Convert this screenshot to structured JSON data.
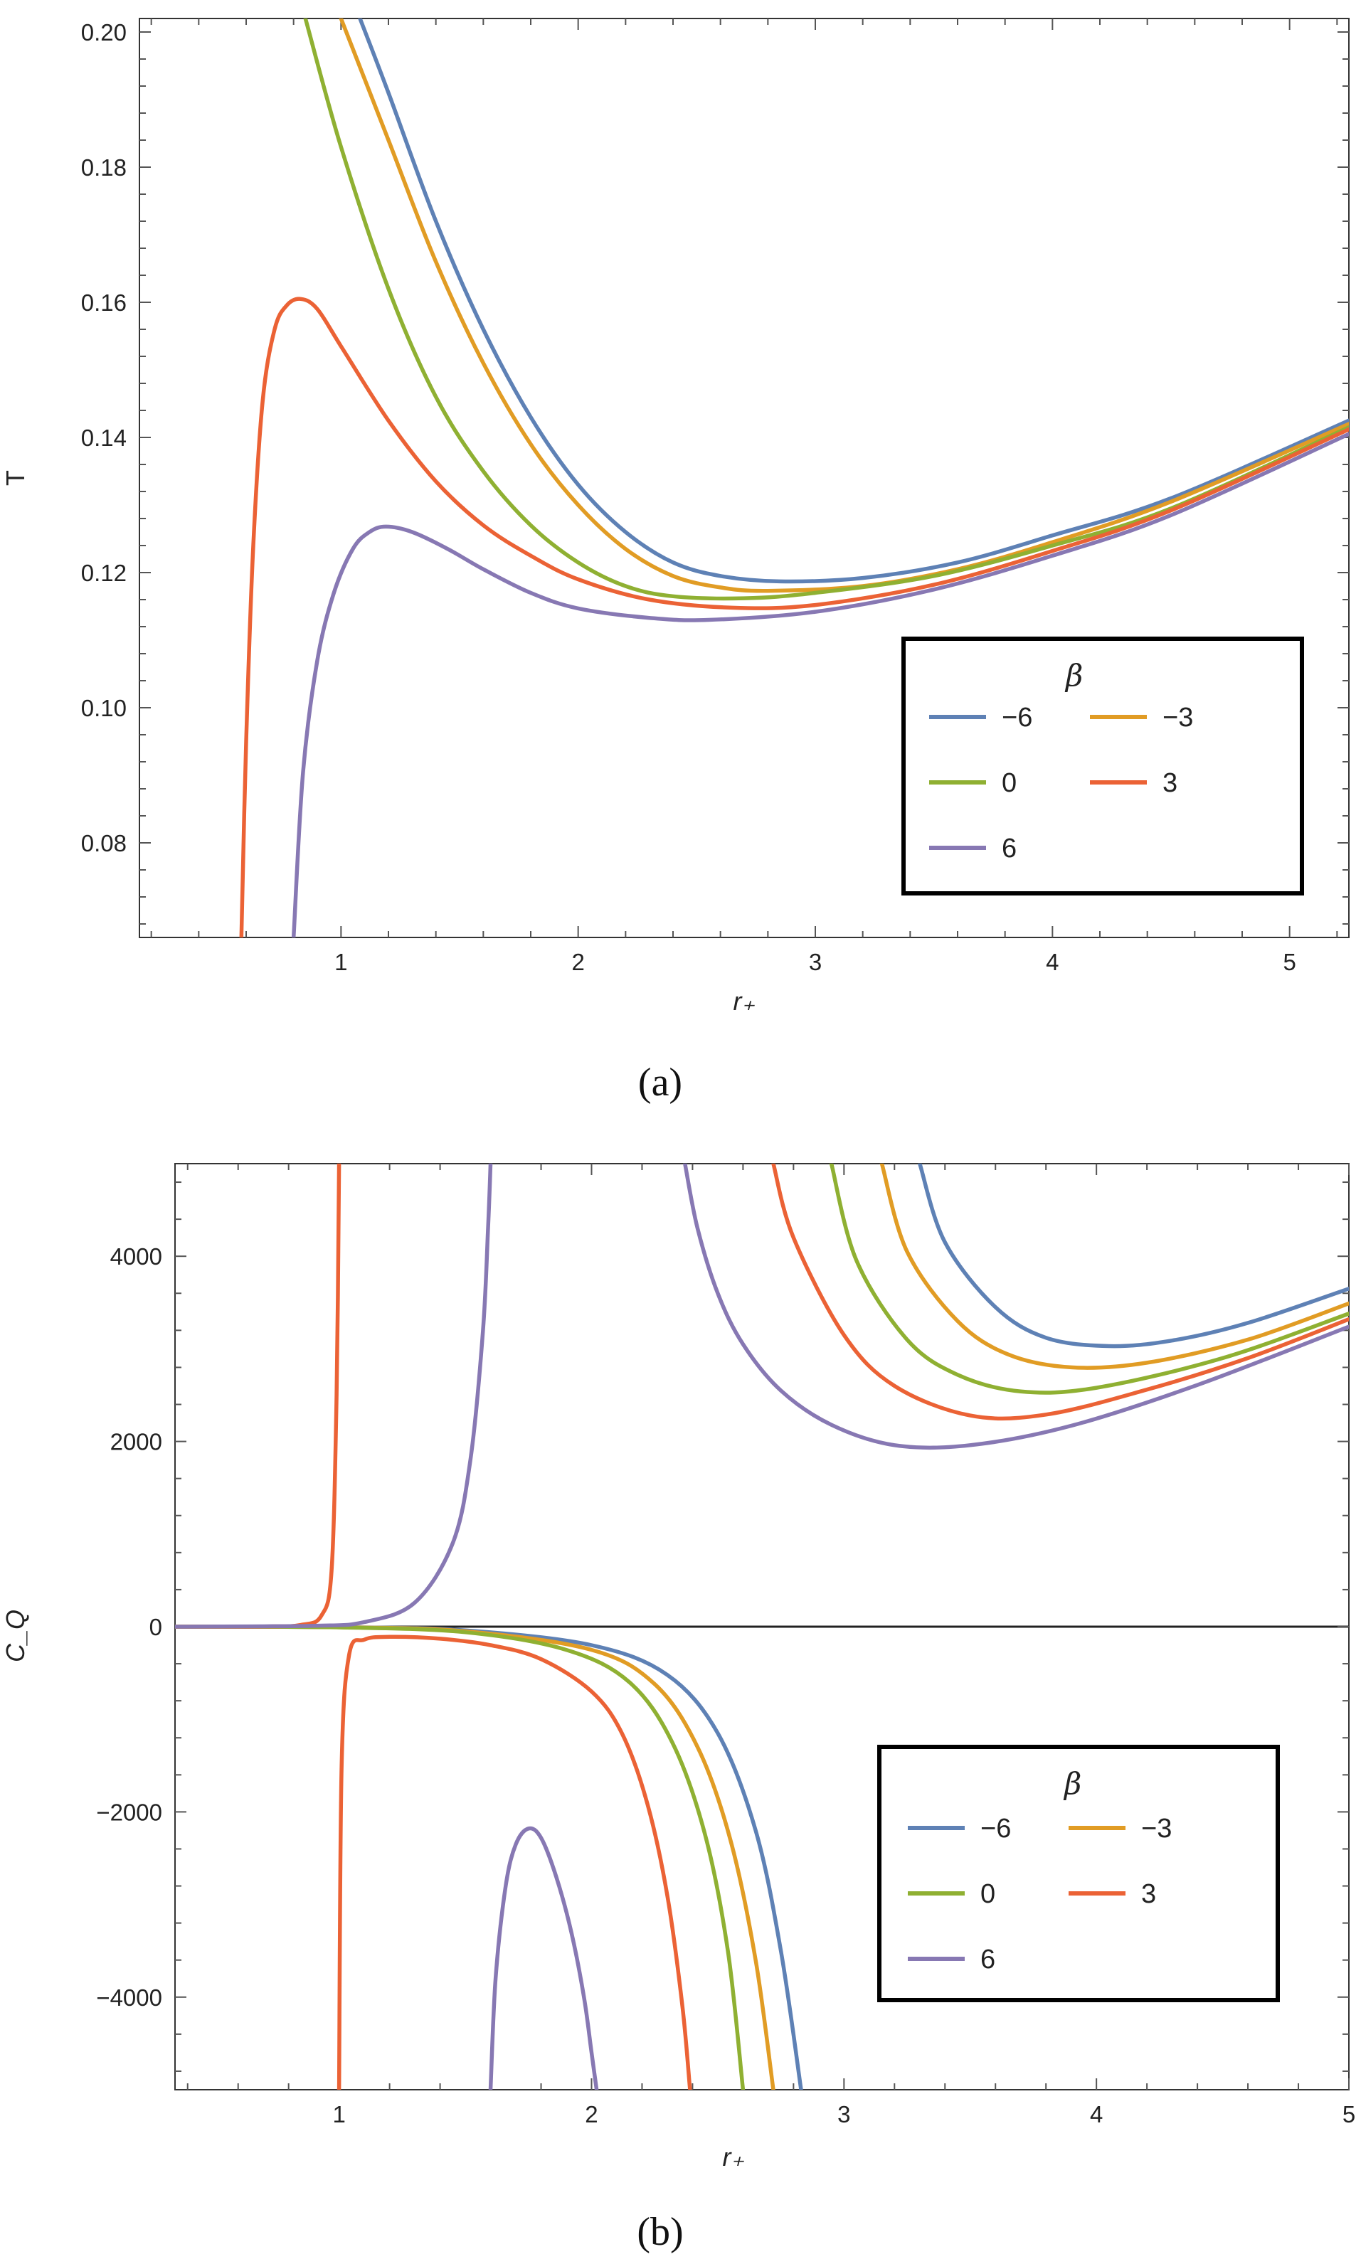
{
  "figure": {
    "panels": [
      "(a)",
      "(b)"
    ]
  },
  "chart_data": [
    {
      "type": "line",
      "panel": "(a)",
      "caption": "(a)",
      "xlabel": "r₊",
      "ylabel": "T",
      "xlim": [
        0.15,
        5.25
      ],
      "ylim": [
        0.066,
        0.202
      ],
      "xticks": [
        1,
        2,
        3,
        4,
        5
      ],
      "xtick_labels": [
        "1",
        "2",
        "3",
        "4",
        "5"
      ],
      "yticks": [
        0.08,
        0.1,
        0.12,
        0.14,
        0.16,
        0.18,
        0.2
      ],
      "ytick_labels": [
        "0.08",
        "0.10",
        "0.12",
        "0.14",
        "0.16",
        "0.18",
        "0.20"
      ],
      "legend": {
        "title": "β",
        "position": "bottom-right",
        "entries": [
          "−6",
          "−3",
          "0",
          "3",
          "6"
        ]
      },
      "series": [
        {
          "name": "−6",
          "color": "#5e81b5",
          "x": [
            1.08,
            1.2,
            1.4,
            1.6,
            1.8,
            2.0,
            2.2,
            2.4,
            2.6,
            2.85,
            3.2,
            3.6,
            4.0,
            4.5,
            5.25
          ],
          "y": [
            0.202,
            0.191,
            0.172,
            0.156,
            0.143,
            0.133,
            0.126,
            0.1215,
            0.1195,
            0.1187,
            0.1192,
            0.1215,
            0.1255,
            0.131,
            0.1425
          ]
        },
        {
          "name": "−3",
          "color": "#e19c24",
          "x": [
            1.0,
            1.2,
            1.4,
            1.6,
            1.8,
            2.0,
            2.2,
            2.4,
            2.6,
            2.8,
            3.2,
            3.6,
            4.0,
            4.5,
            5.25
          ],
          "y": [
            0.202,
            0.184,
            0.166,
            0.151,
            0.139,
            0.13,
            0.1235,
            0.1195,
            0.1178,
            0.1173,
            0.118,
            0.1205,
            0.1245,
            0.1305,
            0.142
          ]
        },
        {
          "name": "0",
          "color": "#8fb032",
          "x": [
            0.85,
            1.0,
            1.2,
            1.4,
            1.6,
            1.8,
            2.0,
            2.2,
            2.4,
            2.7,
            3.0,
            3.5,
            4.0,
            4.5,
            5.25
          ],
          "y": [
            0.202,
            0.183,
            0.162,
            0.146,
            0.135,
            0.127,
            0.1215,
            0.118,
            0.1165,
            0.1162,
            0.117,
            0.1195,
            0.124,
            0.1295,
            0.1415
          ]
        },
        {
          "name": "3",
          "color": "#eb6235",
          "x": [
            0.58,
            0.6,
            0.63,
            0.67,
            0.72,
            0.77,
            0.83,
            0.9,
            1.0,
            1.2,
            1.4,
            1.6,
            1.8,
            2.0,
            2.3,
            2.65,
            3.0,
            3.5,
            4.0,
            4.5,
            5.25
          ],
          "y": [
            0.066,
            0.095,
            0.124,
            0.1455,
            0.156,
            0.1595,
            0.1605,
            0.159,
            0.1535,
            0.1425,
            0.1335,
            0.127,
            0.1225,
            0.119,
            0.116,
            0.1148,
            0.1152,
            0.1182,
            0.1232,
            0.1292,
            0.1412
          ]
        },
        {
          "name": "6",
          "color": "#8778b3",
          "x": [
            0.8,
            0.84,
            0.9,
            0.97,
            1.05,
            1.12,
            1.19,
            1.3,
            1.45,
            1.6,
            1.8,
            2.0,
            2.3,
            2.55,
            3.0,
            3.5,
            4.0,
            4.5,
            5.25
          ],
          "y": [
            0.066,
            0.0905,
            0.107,
            0.117,
            0.1235,
            0.126,
            0.1268,
            0.126,
            0.1235,
            0.1205,
            0.117,
            0.1147,
            0.1133,
            0.113,
            0.1142,
            0.1175,
            0.1225,
            0.1285,
            0.1405
          ]
        }
      ]
    },
    {
      "type": "line",
      "panel": "(b)",
      "caption": "(b)",
      "xlabel": "r₊",
      "ylabel": "C_Q",
      "xlim": [
        0.35,
        5.0
      ],
      "ylim": [
        -5000,
        5000
      ],
      "xticks": [
        1,
        2,
        3,
        4,
        5
      ],
      "xtick_labels": [
        "1",
        "2",
        "3",
        "4",
        "5"
      ],
      "yticks": [
        -4000,
        -2000,
        0,
        2000,
        4000
      ],
      "ytick_labels": [
        "−4000",
        "−2000",
        "0",
        "2000",
        "4000"
      ],
      "legend": {
        "title": "β",
        "position": "bottom-right",
        "entries": [
          "−6",
          "−3",
          "0",
          "3",
          "6"
        ]
      },
      "series": [
        {
          "name": "−6",
          "color": "#5e81b5",
          "segments": [
            {
              "x": [
                0.35,
                1.0,
                1.5,
                2.0,
                2.3,
                2.5,
                2.65,
                2.75,
                2.83
              ],
              "y": [
                0,
                -5,
                -40,
                -200,
                -520,
                -1150,
                -2200,
                -3500,
                -5000
              ]
            },
            {
              "x": [
                3.3,
                3.4,
                3.6,
                3.8,
                4.05,
                4.3,
                4.6,
                5.0
              ],
              "y": [
                5000,
                4150,
                3450,
                3120,
                3030,
                3090,
                3280,
                3650
              ]
            }
          ]
        },
        {
          "name": "−3",
          "color": "#e19c24",
          "segments": [
            {
              "x": [
                0.35,
                1.0,
                1.5,
                2.0,
                2.25,
                2.42,
                2.55,
                2.65,
                2.72
              ],
              "y": [
                0,
                -6,
                -50,
                -250,
                -620,
                -1300,
                -2300,
                -3600,
                -5000
              ]
            },
            {
              "x": [
                3.15,
                3.25,
                3.45,
                3.65,
                3.9,
                4.2,
                4.6,
                5.0
              ],
              "y": [
                5000,
                4050,
                3300,
                2940,
                2800,
                2850,
                3100,
                3490
              ]
            }
          ]
        },
        {
          "name": "0",
          "color": "#8fb032",
          "segments": [
            {
              "x": [
                0.35,
                1.0,
                1.5,
                1.9,
                2.15,
                2.32,
                2.45,
                2.54,
                2.6
              ],
              "y": [
                0,
                -8,
                -60,
                -250,
                -600,
                -1250,
                -2250,
                -3500,
                -5000
              ]
            },
            {
              "x": [
                2.95,
                3.05,
                3.25,
                3.45,
                3.7,
                4.0,
                4.5,
                5.0
              ],
              "y": [
                5000,
                3950,
                3100,
                2720,
                2540,
                2580,
                2900,
                3380
              ]
            }
          ]
        },
        {
          "name": "3",
          "color": "#eb6235",
          "segments": [
            {
              "x": [
                0.35,
                0.7,
                0.85,
                0.93,
                0.97,
                0.99,
                1.0
              ],
              "y": [
                0,
                2,
                20,
                120,
                600,
                2500,
                5000
              ]
            },
            {
              "x": [
                1.0,
                1.01,
                1.04,
                1.1,
                1.2,
                1.4,
                1.6,
                1.8,
                2.0,
                2.12,
                2.22,
                2.3,
                2.36,
                2.39
              ],
              "y": [
                -5000,
                -1500,
                -300,
                -140,
                -110,
                -130,
                -200,
                -350,
                -700,
                -1150,
                -1900,
                -2900,
                -4100,
                -5000
              ]
            },
            {
              "x": [
                2.72,
                2.8,
                3.0,
                3.2,
                3.5,
                3.8,
                4.2,
                4.6,
                5.0
              ],
              "y": [
                5000,
                4200,
                3150,
                2600,
                2280,
                2290,
                2560,
                2900,
                3320
              ]
            }
          ]
        },
        {
          "name": "6",
          "color": "#8778b3",
          "segments": [
            {
              "x": [
                0.35,
                0.9,
                1.1,
                1.3,
                1.45,
                1.52,
                1.57,
                1.59,
                1.6
              ],
              "y": [
                0,
                10,
                50,
                260,
                900,
                1800,
                3200,
                4300,
                5000
              ]
            },
            {
              "x": [
                1.6,
                1.62,
                1.66,
                1.7,
                1.75,
                1.8,
                1.86,
                1.92,
                1.97,
                2.0,
                2.02
              ],
              "y": [
                -5000,
                -3800,
                -2800,
                -2350,
                -2180,
                -2280,
                -2700,
                -3300,
                -4000,
                -4600,
                -5000
              ]
            },
            {
              "x": [
                2.37,
                2.42,
                2.5,
                2.6,
                2.75,
                2.95,
                3.2,
                3.5,
                3.9,
                4.4,
                5.0
              ],
              "y": [
                5000,
                4300,
                3600,
                3050,
                2550,
                2180,
                1960,
                1960,
                2170,
                2610,
                3240
              ]
            }
          ]
        }
      ]
    }
  ]
}
